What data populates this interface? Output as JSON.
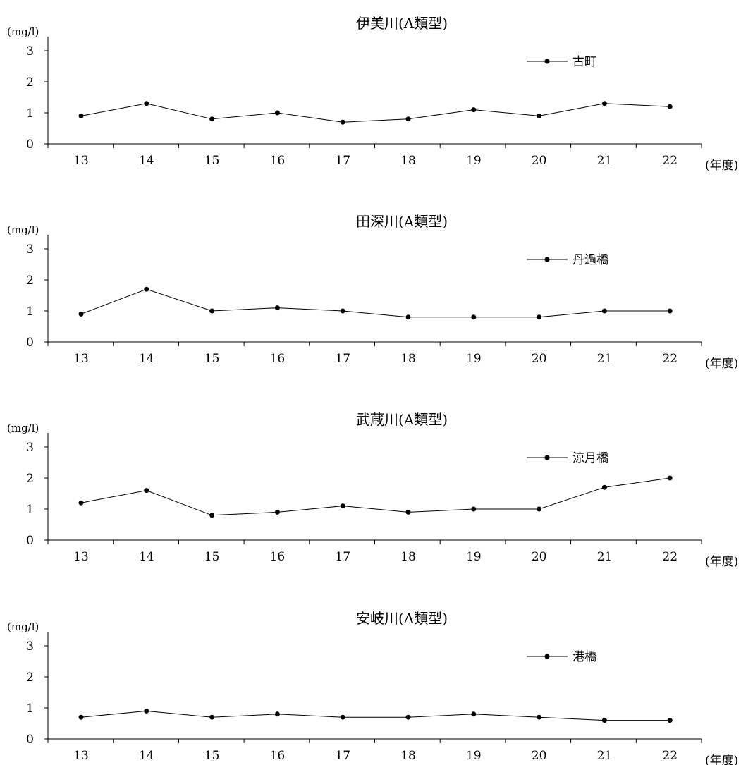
{
  "chart_data": [
    {
      "type": "line",
      "title": "伊美川(A類型)",
      "ylabel": "(mg/l)",
      "xlabel": "(年度)",
      "categories": [
        "13",
        "14",
        "15",
        "16",
        "17",
        "18",
        "19",
        "20",
        "21",
        "22"
      ],
      "yticks": [
        "0",
        "1",
        "2",
        "3"
      ],
      "ylim": [
        0,
        3.3
      ],
      "legend_position": "top-right",
      "series": [
        {
          "name": "古町",
          "values": [
            0.9,
            1.3,
            0.8,
            1.0,
            0.7,
            0.8,
            1.1,
            0.9,
            1.3,
            1.2
          ]
        }
      ]
    },
    {
      "type": "line",
      "title": "田深川(A類型)",
      "ylabel": "(mg/l)",
      "xlabel": "(年度)",
      "categories": [
        "13",
        "14",
        "15",
        "16",
        "17",
        "18",
        "19",
        "20",
        "21",
        "22"
      ],
      "yticks": [
        "0",
        "1",
        "2",
        "3"
      ],
      "ylim": [
        0,
        3.3
      ],
      "legend_position": "top-right",
      "series": [
        {
          "name": "丹過橋",
          "values": [
            0.9,
            1.7,
            1.0,
            1.1,
            1.0,
            0.8,
            0.8,
            0.8,
            1.0,
            1.0
          ]
        }
      ]
    },
    {
      "type": "line",
      "title": "武蔵川(A類型)",
      "ylabel": "(mg/l)",
      "xlabel": "(年度)",
      "categories": [
        "13",
        "14",
        "15",
        "16",
        "17",
        "18",
        "19",
        "20",
        "21",
        "22"
      ],
      "yticks": [
        "0",
        "1",
        "2",
        "3"
      ],
      "ylim": [
        0,
        3.3
      ],
      "legend_position": "top-right",
      "series": [
        {
          "name": "涼月橋",
          "values": [
            1.2,
            1.6,
            0.8,
            0.9,
            1.1,
            0.9,
            1.0,
            1.0,
            1.7,
            2.0
          ]
        }
      ]
    },
    {
      "type": "line",
      "title": "安岐川(A類型)",
      "ylabel": "(mg/l)",
      "xlabel": "(年度)",
      "categories": [
        "13",
        "14",
        "15",
        "16",
        "17",
        "18",
        "19",
        "20",
        "21",
        "22"
      ],
      "yticks": [
        "0",
        "1",
        "2",
        "3"
      ],
      "ylim": [
        0,
        3.3
      ],
      "legend_position": "top-right",
      "series": [
        {
          "name": "港橋",
          "values": [
            0.7,
            0.9,
            0.7,
            0.8,
            0.7,
            0.7,
            0.8,
            0.7,
            0.6,
            0.6
          ]
        }
      ]
    }
  ]
}
